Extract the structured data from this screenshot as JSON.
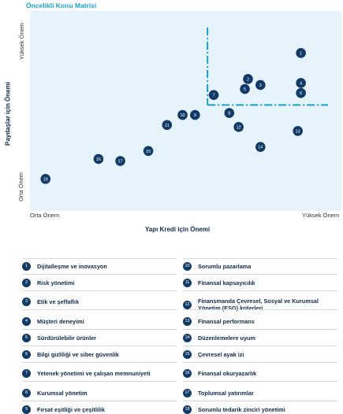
{
  "chart_data": {
    "type": "scatter",
    "title": "Öncelikli Konu Matrisi",
    "xlabel": "Yapı Kredi için Önemi",
    "ylabel": "Paydaşlar için Önemi",
    "x_ticks": [
      "Orta Önem",
      "Yüksek Önem"
    ],
    "y_ticks": [
      "Orta Önem",
      "Yüksek Önem"
    ],
    "xlim": [
      0,
      100
    ],
    "ylim": [
      0,
      100
    ],
    "threshold": {
      "x": 57,
      "y": 53
    },
    "points": [
      {
        "id": "1",
        "x": 87,
        "y": 79
      },
      {
        "id": "2",
        "x": 70,
        "y": 66
      },
      {
        "id": "3",
        "x": 74,
        "y": 63
      },
      {
        "id": "4",
        "x": 87,
        "y": 64
      },
      {
        "id": "5",
        "x": 69,
        "y": 61
      },
      {
        "id": "6",
        "x": 87,
        "y": 59
      },
      {
        "id": "7",
        "x": 59,
        "y": 58
      },
      {
        "id": "8",
        "x": 64,
        "y": 49
      },
      {
        "id": "9",
        "x": 53,
        "y": 48
      },
      {
        "id": "10",
        "x": 49,
        "y": 48
      },
      {
        "id": "11",
        "x": 44,
        "y": 43
      },
      {
        "id": "12",
        "x": 67,
        "y": 42
      },
      {
        "id": "13",
        "x": 86,
        "y": 40
      },
      {
        "id": "14",
        "x": 74,
        "y": 32
      },
      {
        "id": "15",
        "x": 38,
        "y": 30
      },
      {
        "id": "16",
        "x": 22,
        "y": 26
      },
      {
        "id": "17",
        "x": 29,
        "y": 25
      },
      {
        "id": "18",
        "x": 5,
        "y": 16
      }
    ]
  },
  "legend": [
    {
      "num": "1",
      "label": "Dijitalleşme ve inovasyon"
    },
    {
      "num": "2",
      "label": "Risk yönetimi"
    },
    {
      "num": "3",
      "label": "Etik ve şeffaflık"
    },
    {
      "num": "4",
      "label": "Müşteri deneyimi"
    },
    {
      "num": "5",
      "label": "Sürdürülebilir ürünler"
    },
    {
      "num": "6",
      "label": "Bilgi gizliliği ve siber güvenlik"
    },
    {
      "num": "7",
      "label": "Yetenek yönetimi ve çalışan memnuniyeti"
    },
    {
      "num": "8",
      "label": "Kurumsal yönetim"
    },
    {
      "num": "9",
      "label": "Fırsat eşitliği ve çeşitlilik"
    },
    {
      "num": "10",
      "label": "Sorumlu pazarlama"
    },
    {
      "num": "11",
      "label": "Finansal kapsayıcılık"
    },
    {
      "num": "12",
      "label": "Finansmanda Çevresel, Sosyal ve Kurumsal Yönetim (ESG) kriterleri"
    },
    {
      "num": "13",
      "label": "Finansal performans"
    },
    {
      "num": "14",
      "label": "Düzenlemelere uyum"
    },
    {
      "num": "15",
      "label": "Çevresel ayak izi"
    },
    {
      "num": "16",
      "label": "Finansal okuryazarlık"
    },
    {
      "num": "17",
      "label": "Toplumsal yatırımlar"
    },
    {
      "num": "18",
      "label": "Sorumlu tedarik zinciri yönetimi"
    }
  ],
  "colors": {
    "plot_bg": "#e7f3fa",
    "marker": "#123a66",
    "threshold_line": "#16a2c2",
    "title": "#1aa3c8"
  }
}
